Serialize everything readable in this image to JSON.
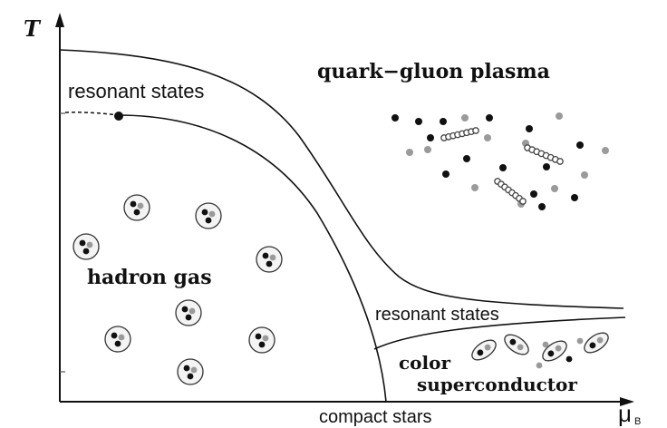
{
  "axes": {
    "y_label": "T",
    "x_label": "μ",
    "x_subscript": "B"
  },
  "regions": {
    "qgp": "quark−gluon plasma",
    "resonant_top": "resonant states",
    "resonant_right": "resonant states",
    "hadron_gas": "hadron gas",
    "color_line1": "color",
    "color_line2": "superconductor",
    "compact_stars": "compact stars"
  },
  "colors": {
    "ink": "#111111",
    "grey_quark": "#9a9a9a",
    "gluon_fill": "#444444"
  }
}
